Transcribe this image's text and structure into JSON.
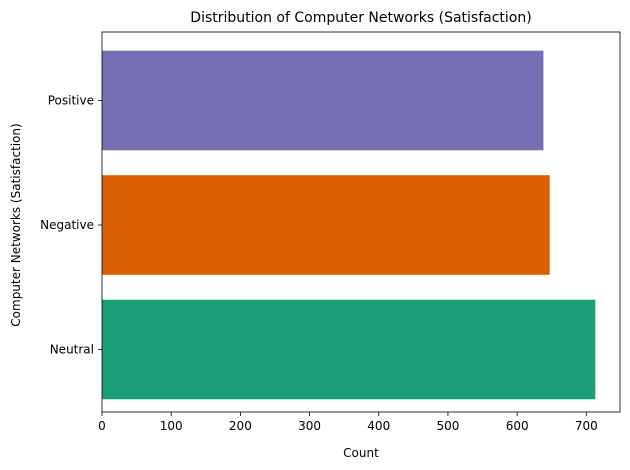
{
  "chart_data": {
    "type": "bar",
    "orientation": "horizontal",
    "title": "Distribution of Computer Networks (Satisfaction)",
    "xlabel": "Count",
    "ylabel": "Computer Networks (Satisfaction)",
    "categories": [
      "Neutral",
      "Negative",
      "Positive"
    ],
    "values": [
      713,
      647,
      638
    ],
    "colors": [
      "#1b9e77",
      "#d95f02",
      "#7570b3"
    ],
    "xlim": [
      0,
      748.65
    ],
    "xticks": [
      0,
      100,
      200,
      300,
      400,
      500,
      600,
      700
    ],
    "grid": false,
    "legend": "none"
  }
}
